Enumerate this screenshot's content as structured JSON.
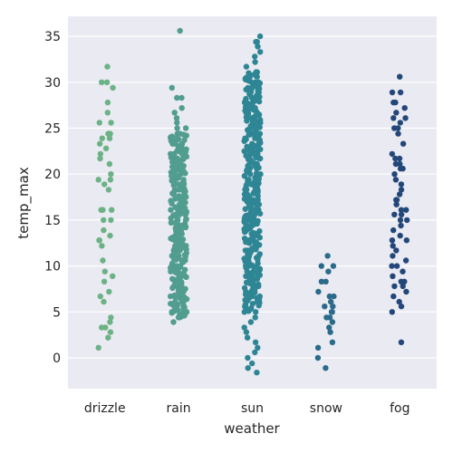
{
  "chart_data": {
    "type": "scatter",
    "style": "strip plot (jittered categorical)",
    "xlabel": "weather",
    "ylabel": "temp_max",
    "categories": [
      "drizzle",
      "rain",
      "sun",
      "snow",
      "fog"
    ],
    "yticks": [
      0,
      5,
      10,
      15,
      20,
      25,
      30,
      35
    ],
    "ylim": [
      -3.3,
      37.3
    ],
    "grid": true,
    "colors": {
      "background": "#eaeaf2",
      "grid": "#ffffff",
      "drizzle": "#6bb285",
      "rain": "#519d8f",
      "sun": "#2e8694",
      "snow": "#2a6a8a",
      "fog": "#24477a"
    },
    "series": [
      {
        "category": "drizzle",
        "values": [
          31.7,
          30.0,
          30.0,
          29.4,
          27.8,
          26.7,
          25.6,
          25.6,
          24.4,
          24.4,
          24.4,
          23.9,
          23.9,
          23.3,
          22.8,
          22.2,
          21.7,
          21.1,
          20.0,
          19.4,
          19.4,
          18.9,
          18.3,
          16.1,
          16.1,
          16.1,
          16.1,
          15.0,
          15.0,
          13.9,
          13.3,
          12.8,
          12.8,
          12.2,
          10.6,
          9.4,
          8.9,
          8.3,
          7.2,
          6.7,
          6.1,
          4.4,
          3.9,
          3.3,
          3.3,
          2.8,
          2.2,
          1.1
        ]
      },
      {
        "category": "rain",
        "values": [
          35.6,
          29.4,
          28.3,
          28.3,
          27.2,
          26.7,
          26.1,
          25.6,
          25.0,
          25.0,
          24.4,
          23.9,
          23.3,
          23.3,
          22.8,
          22.2,
          21.7,
          21.1,
          20.6,
          20.0,
          19.4,
          18.9,
          18.3,
          17.8,
          17.2,
          16.7,
          16.1,
          15.6,
          15.0,
          14.4,
          13.9,
          13.3,
          12.8,
          12.2,
          11.7,
          11.1,
          10.6,
          10.0,
          9.4,
          8.9,
          8.3,
          7.8,
          7.2,
          6.7,
          6.1,
          5.6,
          5.0,
          4.4,
          3.9
        ],
        "dense_range": [
          4.4,
          24.4
        ]
      },
      {
        "category": "sun",
        "values": [
          35.0,
          34.4,
          34.4,
          33.9,
          33.3,
          32.8,
          32.2,
          31.7,
          31.1,
          30.6,
          30.0,
          29.4,
          28.9,
          28.3,
          27.8,
          27.2,
          26.7,
          26.1,
          25.6,
          25.0,
          24.4,
          23.9,
          23.3,
          22.8,
          22.2,
          21.7,
          21.1,
          20.6,
          20.0,
          19.4,
          18.9,
          18.3,
          17.8,
          17.2,
          16.7,
          16.1,
          15.6,
          15.0,
          14.4,
          13.9,
          13.3,
          12.8,
          12.2,
          11.7,
          11.1,
          10.6,
          10.0,
          9.4,
          8.9,
          8.3,
          7.8,
          7.2,
          6.7,
          6.1,
          5.6,
          5.0,
          4.4,
          3.9,
          3.3,
          2.8,
          2.2,
          1.7,
          1.1,
          0.6,
          0.0,
          -0.6,
          -1.1,
          -1.6
        ],
        "dense_range": [
          5.0,
          31.1
        ]
      },
      {
        "category": "snow",
        "values": [
          11.1,
          10.0,
          10.0,
          9.4,
          8.3,
          8.3,
          7.2,
          6.7,
          6.7,
          6.1,
          5.6,
          5.6,
          5.0,
          5.0,
          4.4,
          4.4,
          3.9,
          3.3,
          2.8,
          1.7,
          1.1,
          0.0,
          -1.1
        ]
      },
      {
        "category": "fog",
        "values": [
          30.6,
          28.9,
          28.9,
          27.8,
          27.8,
          27.2,
          26.7,
          26.1,
          26.1,
          25.6,
          25.0,
          25.0,
          24.4,
          23.3,
          22.2,
          21.7,
          21.7,
          21.1,
          21.1,
          20.6,
          20.6,
          20.0,
          19.4,
          18.9,
          18.3,
          17.8,
          17.2,
          17.2,
          16.7,
          16.1,
          16.1,
          15.6,
          15.6,
          15.0,
          15.0,
          14.4,
          13.9,
          13.3,
          12.8,
          12.8,
          12.2,
          11.7,
          11.1,
          10.6,
          10.0,
          10.0,
          9.4,
          8.9,
          8.3,
          8.3,
          7.8,
          7.8,
          7.2,
          6.7,
          6.1,
          5.6,
          5.0,
          1.7
        ]
      }
    ]
  }
}
